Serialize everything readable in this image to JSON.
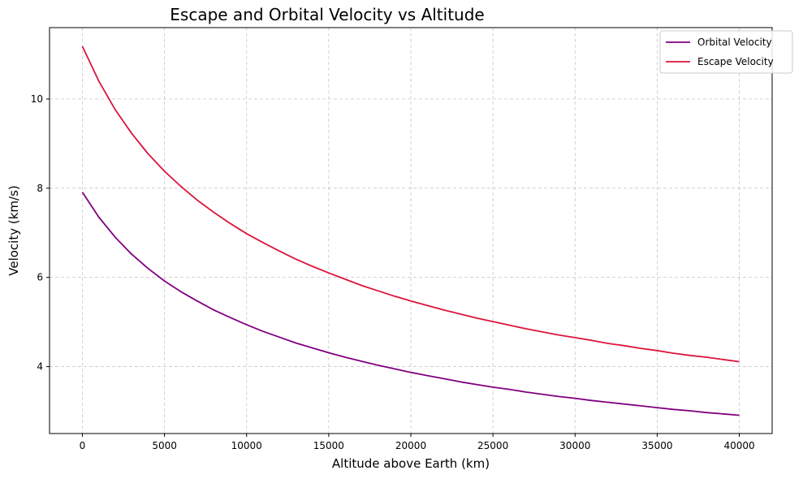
{
  "chart_data": {
    "type": "line",
    "title": "Escape and Orbital Velocity vs Altitude",
    "xlabel": "Altitude above Earth (km)",
    "ylabel": "Velocity (km/s)",
    "xlim": [
      -2000,
      42000
    ],
    "ylim": [
      2.5,
      11.6
    ],
    "xticks": [
      0,
      5000,
      10000,
      15000,
      20000,
      25000,
      30000,
      35000,
      40000
    ],
    "yticks": [
      4,
      6,
      8,
      10
    ],
    "grid": true,
    "legend_position": "top-right",
    "x": [
      0,
      1000,
      2000,
      3000,
      4000,
      5000,
      6000,
      7000,
      8000,
      9000,
      10000,
      11000,
      12000,
      13000,
      14000,
      15000,
      16000,
      17000,
      18000,
      19000,
      20000,
      21000,
      22000,
      23000,
      24000,
      25000,
      26000,
      27000,
      28000,
      29000,
      30000,
      31000,
      32000,
      33000,
      34000,
      35000,
      36000,
      37000,
      38000,
      39000,
      40000
    ],
    "series": [
      {
        "name": "Orbital Velocity",
        "color": "#800080",
        "values": [
          7.91,
          7.35,
          6.9,
          6.52,
          6.2,
          5.92,
          5.68,
          5.47,
          5.27,
          5.1,
          4.94,
          4.79,
          4.66,
          4.53,
          4.42,
          4.31,
          4.21,
          4.12,
          4.03,
          3.95,
          3.87,
          3.8,
          3.73,
          3.66,
          3.6,
          3.54,
          3.49,
          3.43,
          3.38,
          3.33,
          3.29,
          3.24,
          3.2,
          3.16,
          3.12,
          3.08,
          3.04,
          3.01,
          2.97,
          2.94,
          2.91
        ]
      },
      {
        "name": "Escape Velocity",
        "color": "#dc143c",
        "values": [
          11.18,
          10.4,
          9.76,
          9.23,
          8.77,
          8.38,
          8.04,
          7.73,
          7.46,
          7.21,
          6.98,
          6.78,
          6.59,
          6.41,
          6.25,
          6.1,
          5.96,
          5.82,
          5.7,
          5.58,
          5.47,
          5.37,
          5.27,
          5.18,
          5.09,
          5.01,
          4.93,
          4.85,
          4.78,
          4.71,
          4.65,
          4.59,
          4.52,
          4.47,
          4.41,
          4.36,
          4.3,
          4.25,
          4.21,
          4.16,
          4.11
        ]
      }
    ]
  }
}
